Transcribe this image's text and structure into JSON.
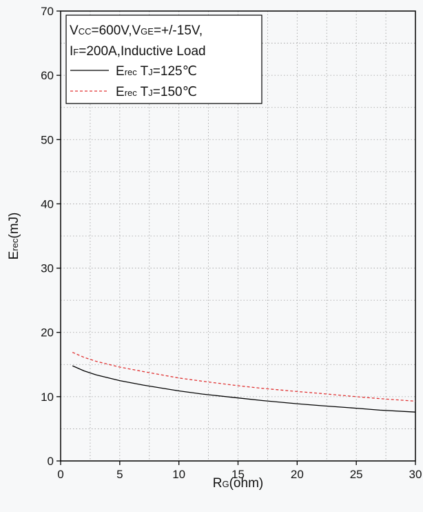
{
  "chart_data": {
    "type": "line",
    "xlabel": {
      "main": "R",
      "sub": "G",
      "rest": "(ohm)"
    },
    "ylabel": {
      "main": "E",
      "sub": "rec",
      "rest": "(mJ)"
    },
    "xlim": [
      0,
      30
    ],
    "ylim": [
      0,
      70
    ],
    "x_ticks": [
      0,
      5,
      10,
      15,
      20,
      25,
      30
    ],
    "y_ticks": [
      0,
      10,
      20,
      30,
      40,
      50,
      60,
      70
    ],
    "x_tick_labels": [
      "0",
      "5",
      "10",
      "15",
      "20",
      "25",
      "30"
    ],
    "y_tick_labels": [
      "0",
      "10",
      "20",
      "30",
      "40",
      "50",
      "60",
      "70"
    ],
    "grid": true,
    "legend_position": "top-left",
    "legend": {
      "conditions_line1": [
        {
          "t": "V",
          "sub": false
        },
        {
          "t": "CC",
          "sub": true
        },
        {
          "t": "=600V,V",
          "sub": false
        },
        {
          "t": "GE",
          "sub": true
        },
        {
          "t": "=+/-15V,",
          "sub": false
        }
      ],
      "conditions_line2": [
        {
          "t": "I",
          "sub": false
        },
        {
          "t": "F",
          "sub": true
        },
        {
          "t": "=200A,Inductive Load",
          "sub": false
        }
      ]
    },
    "series": [
      {
        "name": [
          {
            "t": "E",
            "sub": false
          },
          {
            "t": "rec",
            "sub": true
          },
          {
            "t": " T",
            "sub": false
          },
          {
            "t": "J",
            "sub": true
          },
          {
            "t": "=125℃",
            "sub": false
          }
        ],
        "color": "#000000",
        "dash": "solid",
        "x": [
          1,
          2,
          3,
          5,
          7,
          10,
          12,
          15,
          17,
          20,
          22,
          25,
          27,
          30
        ],
        "y": [
          14.8,
          14.0,
          13.4,
          12.5,
          11.8,
          10.9,
          10.4,
          9.8,
          9.4,
          8.9,
          8.6,
          8.2,
          7.9,
          7.6
        ]
      },
      {
        "name": [
          {
            "t": "E",
            "sub": false
          },
          {
            "t": "rec",
            "sub": true
          },
          {
            "t": " T",
            "sub": false
          },
          {
            "t": "J",
            "sub": true
          },
          {
            "t": "=150℃",
            "sub": false
          }
        ],
        "color": "#e03030",
        "dash": "dashed",
        "x": [
          1,
          2,
          3,
          5,
          7,
          10,
          12,
          15,
          17,
          20,
          22,
          25,
          27,
          30
        ],
        "y": [
          16.9,
          16.1,
          15.5,
          14.6,
          13.9,
          12.9,
          12.4,
          11.7,
          11.3,
          10.8,
          10.5,
          10.0,
          9.7,
          9.3
        ]
      }
    ]
  }
}
